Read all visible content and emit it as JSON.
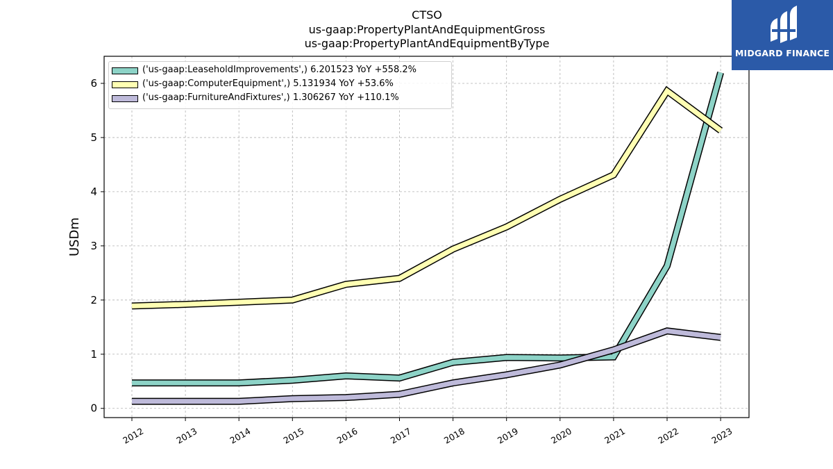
{
  "header": {
    "title_line1": "CTSO",
    "title_line2": "us-gaap:PropertyPlantAndEquipmentGross",
    "title_line3": "us-gaap:PropertyPlantAndEquipmentByType"
  },
  "logo": {
    "text": "MIDGARD FINANCE",
    "icon": "midgard-logo-icon",
    "color": "#2b5aa8"
  },
  "chart_data": {
    "type": "line",
    "ylabel": "USDm",
    "xlabel": "",
    "categories": [
      "2012",
      "2013",
      "2014",
      "2015",
      "2016",
      "2017",
      "2018",
      "2019",
      "2020",
      "2021",
      "2022",
      "2023"
    ],
    "yticks": [
      0,
      1,
      2,
      3,
      4,
      5,
      6
    ],
    "ylim": [
      -0.17,
      6.5
    ],
    "grid": true,
    "legend_position": "top-left",
    "series": [
      {
        "name": "('us-gaap:LeaseholdImprovements',) 6.201523 YoY +558.2%",
        "color": "#8dd3c7",
        "values": [
          0.47,
          0.47,
          0.47,
          0.52,
          0.6,
          0.56,
          0.85,
          0.94,
          0.93,
          0.95,
          2.63,
          6.2
        ]
      },
      {
        "name": "('us-gaap:ComputerEquipment',) 5.131934 YoY +53.6%",
        "color": "#ffffb3",
        "values": [
          1.89,
          1.92,
          1.96,
          2.0,
          2.29,
          2.4,
          2.94,
          3.35,
          3.86,
          4.31,
          5.86,
          5.13
        ]
      },
      {
        "name": "('us-gaap:FurnitureAndFixtures',) 1.306267 YoY +110.1%",
        "color": "#bebada",
        "values": [
          0.13,
          0.13,
          0.13,
          0.18,
          0.2,
          0.26,
          0.47,
          0.62,
          0.8,
          1.08,
          1.43,
          1.31
        ]
      }
    ]
  }
}
